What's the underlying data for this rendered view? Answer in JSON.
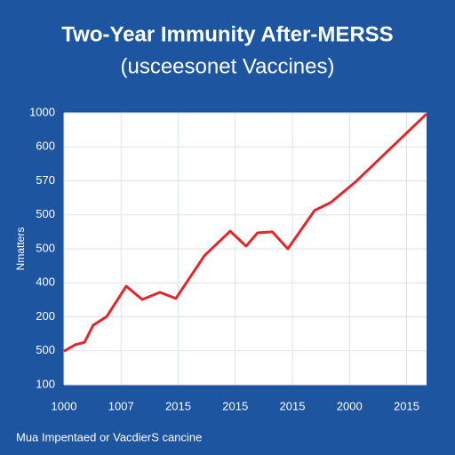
{
  "chart_data": {
    "type": "line",
    "title": "Two-Year Immunity After-MERSS",
    "subtitle": "(usceesonet Vaccines)",
    "y_label": "Nmatters",
    "footnote": "Mua Impentaed or VacdierS cancine",
    "x": [
      0,
      0.2,
      0.36,
      0.51,
      0.75,
      1.09,
      1.37,
      1.68,
      1.96,
      2.46,
      2.91,
      3.19,
      3.39,
      3.65,
      3.92,
      4.39,
      4.67,
      5.1,
      6.35
    ],
    "values": [
      0.99,
      1.18,
      1.25,
      1.75,
      2.01,
      2.9,
      2.51,
      2.72,
      2.54,
      3.8,
      4.52,
      4.08,
      4.47,
      4.5,
      4.0,
      5.13,
      5.36,
      5.96,
      7.97
    ],
    "color": "#e3262b",
    "xlim": [
      0,
      6.35
    ],
    "ylim": [
      0,
      8
    ],
    "xticks": [
      {
        "value": 0,
        "label": "1000"
      },
      {
        "value": 1,
        "label": "1007"
      },
      {
        "value": 2,
        "label": "2015"
      },
      {
        "value": 3,
        "label": "2015"
      },
      {
        "value": 4,
        "label": "2015"
      },
      {
        "value": 5,
        "label": "2000"
      },
      {
        "value": 6,
        "label": "2015"
      }
    ],
    "yticks": [
      {
        "value": 0,
        "label": "100"
      },
      {
        "value": 1,
        "label": "500"
      },
      {
        "value": 2,
        "label": "200"
      },
      {
        "value": 3,
        "label": "400"
      },
      {
        "value": 4,
        "label": "500"
      },
      {
        "value": 5,
        "label": "500"
      },
      {
        "value": 6,
        "label": "570"
      },
      {
        "value": 7,
        "label": "600"
      },
      {
        "value": 8,
        "label": "1000"
      }
    ],
    "grid": true
  }
}
